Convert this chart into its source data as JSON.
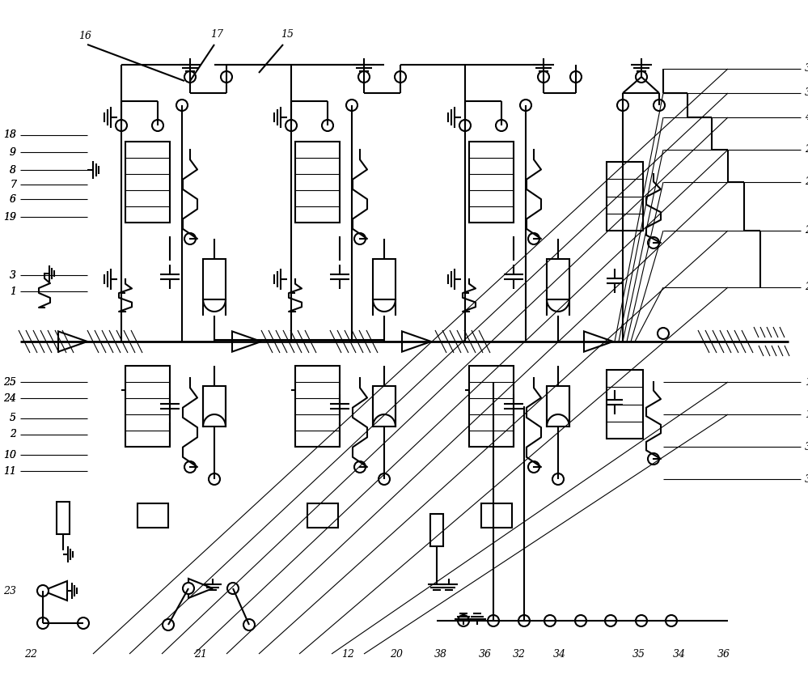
{
  "bg_color": "#ffffff",
  "lc": "#000000",
  "lw": 1.5,
  "thin": 0.8,
  "thick": 2.0,
  "fs": 9,
  "fs_small": 8
}
